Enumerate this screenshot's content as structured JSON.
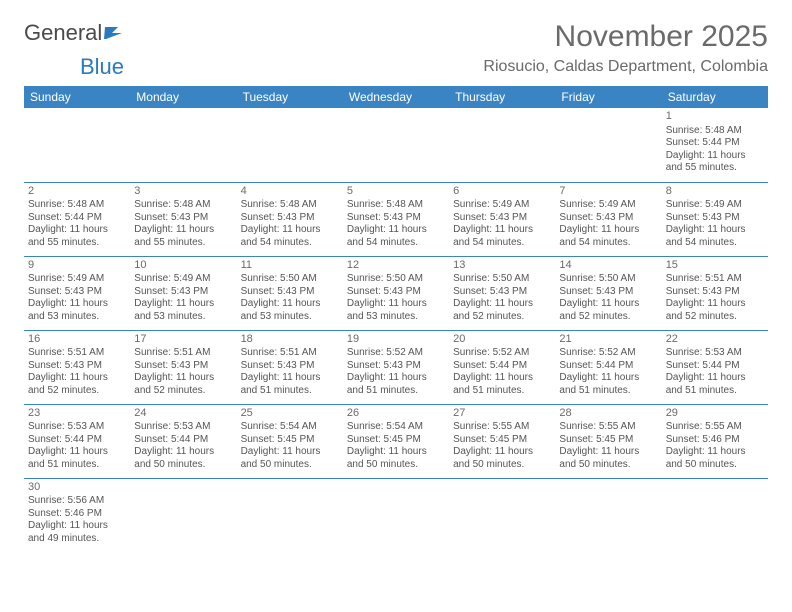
{
  "logo": {
    "text1": "General",
    "text2": "Blue"
  },
  "title": "November 2025",
  "location": "Riosucio, Caldas Department, Colombia",
  "colors": {
    "header_bg": "#3b84c4",
    "header_fg": "#ffffff",
    "text": "#555555",
    "accent": "#2a7ac0"
  },
  "daynames": [
    "Sunday",
    "Monday",
    "Tuesday",
    "Wednesday",
    "Thursday",
    "Friday",
    "Saturday"
  ],
  "weeks": [
    [
      null,
      null,
      null,
      null,
      null,
      null,
      {
        "n": "1",
        "sr": "Sunrise: 5:48 AM",
        "ss": "Sunset: 5:44 PM",
        "dl": "Daylight: 11 hours and 55 minutes."
      }
    ],
    [
      {
        "n": "2",
        "sr": "Sunrise: 5:48 AM",
        "ss": "Sunset: 5:44 PM",
        "dl": "Daylight: 11 hours and 55 minutes."
      },
      {
        "n": "3",
        "sr": "Sunrise: 5:48 AM",
        "ss": "Sunset: 5:43 PM",
        "dl": "Daylight: 11 hours and 55 minutes."
      },
      {
        "n": "4",
        "sr": "Sunrise: 5:48 AM",
        "ss": "Sunset: 5:43 PM",
        "dl": "Daylight: 11 hours and 54 minutes."
      },
      {
        "n": "5",
        "sr": "Sunrise: 5:48 AM",
        "ss": "Sunset: 5:43 PM",
        "dl": "Daylight: 11 hours and 54 minutes."
      },
      {
        "n": "6",
        "sr": "Sunrise: 5:49 AM",
        "ss": "Sunset: 5:43 PM",
        "dl": "Daylight: 11 hours and 54 minutes."
      },
      {
        "n": "7",
        "sr": "Sunrise: 5:49 AM",
        "ss": "Sunset: 5:43 PM",
        "dl": "Daylight: 11 hours and 54 minutes."
      },
      {
        "n": "8",
        "sr": "Sunrise: 5:49 AM",
        "ss": "Sunset: 5:43 PM",
        "dl": "Daylight: 11 hours and 54 minutes."
      }
    ],
    [
      {
        "n": "9",
        "sr": "Sunrise: 5:49 AM",
        "ss": "Sunset: 5:43 PM",
        "dl": "Daylight: 11 hours and 53 minutes."
      },
      {
        "n": "10",
        "sr": "Sunrise: 5:49 AM",
        "ss": "Sunset: 5:43 PM",
        "dl": "Daylight: 11 hours and 53 minutes."
      },
      {
        "n": "11",
        "sr": "Sunrise: 5:50 AM",
        "ss": "Sunset: 5:43 PM",
        "dl": "Daylight: 11 hours and 53 minutes."
      },
      {
        "n": "12",
        "sr": "Sunrise: 5:50 AM",
        "ss": "Sunset: 5:43 PM",
        "dl": "Daylight: 11 hours and 53 minutes."
      },
      {
        "n": "13",
        "sr": "Sunrise: 5:50 AM",
        "ss": "Sunset: 5:43 PM",
        "dl": "Daylight: 11 hours and 52 minutes."
      },
      {
        "n": "14",
        "sr": "Sunrise: 5:50 AM",
        "ss": "Sunset: 5:43 PM",
        "dl": "Daylight: 11 hours and 52 minutes."
      },
      {
        "n": "15",
        "sr": "Sunrise: 5:51 AM",
        "ss": "Sunset: 5:43 PM",
        "dl": "Daylight: 11 hours and 52 minutes."
      }
    ],
    [
      {
        "n": "16",
        "sr": "Sunrise: 5:51 AM",
        "ss": "Sunset: 5:43 PM",
        "dl": "Daylight: 11 hours and 52 minutes."
      },
      {
        "n": "17",
        "sr": "Sunrise: 5:51 AM",
        "ss": "Sunset: 5:43 PM",
        "dl": "Daylight: 11 hours and 52 minutes."
      },
      {
        "n": "18",
        "sr": "Sunrise: 5:51 AM",
        "ss": "Sunset: 5:43 PM",
        "dl": "Daylight: 11 hours and 51 minutes."
      },
      {
        "n": "19",
        "sr": "Sunrise: 5:52 AM",
        "ss": "Sunset: 5:43 PM",
        "dl": "Daylight: 11 hours and 51 minutes."
      },
      {
        "n": "20",
        "sr": "Sunrise: 5:52 AM",
        "ss": "Sunset: 5:44 PM",
        "dl": "Daylight: 11 hours and 51 minutes."
      },
      {
        "n": "21",
        "sr": "Sunrise: 5:52 AM",
        "ss": "Sunset: 5:44 PM",
        "dl": "Daylight: 11 hours and 51 minutes."
      },
      {
        "n": "22",
        "sr": "Sunrise: 5:53 AM",
        "ss": "Sunset: 5:44 PM",
        "dl": "Daylight: 11 hours and 51 minutes."
      }
    ],
    [
      {
        "n": "23",
        "sr": "Sunrise: 5:53 AM",
        "ss": "Sunset: 5:44 PM",
        "dl": "Daylight: 11 hours and 51 minutes."
      },
      {
        "n": "24",
        "sr": "Sunrise: 5:53 AM",
        "ss": "Sunset: 5:44 PM",
        "dl": "Daylight: 11 hours and 50 minutes."
      },
      {
        "n": "25",
        "sr": "Sunrise: 5:54 AM",
        "ss": "Sunset: 5:45 PM",
        "dl": "Daylight: 11 hours and 50 minutes."
      },
      {
        "n": "26",
        "sr": "Sunrise: 5:54 AM",
        "ss": "Sunset: 5:45 PM",
        "dl": "Daylight: 11 hours and 50 minutes."
      },
      {
        "n": "27",
        "sr": "Sunrise: 5:55 AM",
        "ss": "Sunset: 5:45 PM",
        "dl": "Daylight: 11 hours and 50 minutes."
      },
      {
        "n": "28",
        "sr": "Sunrise: 5:55 AM",
        "ss": "Sunset: 5:45 PM",
        "dl": "Daylight: 11 hours and 50 minutes."
      },
      {
        "n": "29",
        "sr": "Sunrise: 5:55 AM",
        "ss": "Sunset: 5:46 PM",
        "dl": "Daylight: 11 hours and 50 minutes."
      }
    ],
    [
      {
        "n": "30",
        "sr": "Sunrise: 5:56 AM",
        "ss": "Sunset: 5:46 PM",
        "dl": "Daylight: 11 hours and 49 minutes."
      },
      null,
      null,
      null,
      null,
      null,
      null
    ]
  ]
}
